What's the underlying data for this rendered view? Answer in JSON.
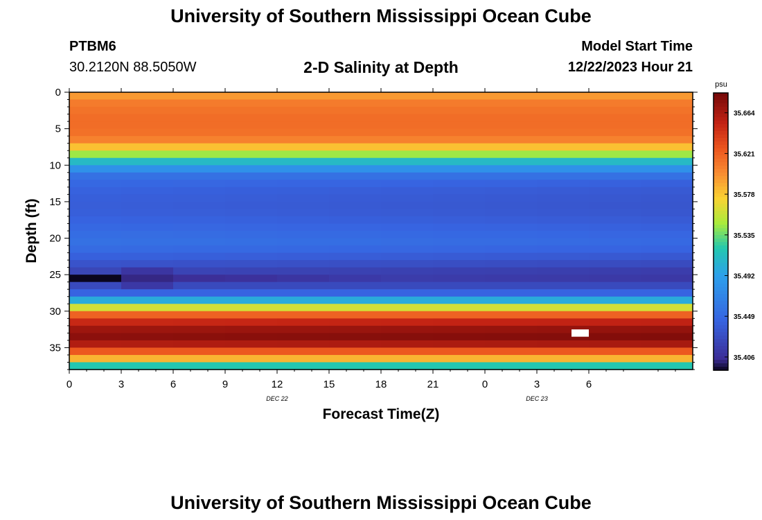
{
  "header": {
    "title": "University of Southern Mississippi Ocean Cube",
    "station_id": "PTBM6",
    "station_coords": "30.2120N  88.5050W",
    "subtitle": "2-D Salinity at Depth",
    "model_start_label": "Model Start Time",
    "model_start_value": "12/22/2023 Hour 21"
  },
  "footer": {
    "title_repeat": "University of Southern Mississippi Ocean Cube"
  },
  "chart_data": {
    "type": "heatmap",
    "title": "2-D Salinity at Depth",
    "xlabel": "Forecast Time(Z)",
    "ylabel": "Depth (ft)",
    "x_range_hours": [
      0,
      36
    ],
    "x_ticks": [
      {
        "hour": 0,
        "label": "0"
      },
      {
        "hour": 3,
        "label": "3"
      },
      {
        "hour": 6,
        "label": "6"
      },
      {
        "hour": 9,
        "label": "9"
      },
      {
        "hour": 12,
        "label": "12"
      },
      {
        "hour": 15,
        "label": "15"
      },
      {
        "hour": 18,
        "label": "18"
      },
      {
        "hour": 21,
        "label": "21"
      },
      {
        "hour": 24,
        "label": "0"
      },
      {
        "hour": 27,
        "label": "3"
      },
      {
        "hour": 30,
        "label": "6"
      }
    ],
    "date_labels": [
      {
        "hour": 12,
        "label": "DEC 22"
      },
      {
        "hour": 27,
        "label": "DEC 23"
      }
    ],
    "y_range_ft": [
      0,
      38
    ],
    "y_ticks": [
      0,
      5,
      10,
      15,
      20,
      25,
      30,
      35
    ],
    "colorbar": {
      "unit": "psu",
      "min": 35.392,
      "max": 35.685,
      "ticks": [
        "35.664",
        "35.621",
        "35.578",
        "35.535",
        "35.492",
        "35.449",
        "35.406"
      ]
    },
    "time_columns": 12,
    "depth_levels_ft": [
      0.5,
      1.5,
      2.5,
      3.5,
      4.5,
      5.5,
      6.5,
      7.5,
      8.5,
      9.5,
      10.5,
      11.5,
      12.5,
      13.5,
      14.5,
      15.5,
      16.5,
      17.5,
      18.5,
      19.5,
      20.5,
      21.5,
      22.5,
      23.5,
      24.5,
      25.5,
      26.5,
      27.5,
      28.5,
      29.5,
      30.5,
      31.5,
      32.5,
      33.5,
      34.5,
      35.5,
      36.5,
      37.5
    ],
    "salinity_profile_psu": [
      35.595,
      35.608,
      35.612,
      35.615,
      35.615,
      35.613,
      35.605,
      35.58,
      35.545,
      35.51,
      35.48,
      35.455,
      35.448,
      35.443,
      35.441,
      35.44,
      35.441,
      35.444,
      35.448,
      35.452,
      35.455,
      35.45,
      35.442,
      35.432,
      35.422,
      35.418,
      35.425,
      35.445,
      35.5,
      35.56,
      35.62,
      35.65,
      35.668,
      35.675,
      35.66,
      35.625,
      35.585,
      35.52
    ],
    "anomalies": [
      {
        "depth_ft": 25.5,
        "column": 0,
        "value_psu": 35.392
      },
      {
        "depth_ft": 25.5,
        "column": 1,
        "value_psu": 35.402
      },
      {
        "depth_ft": 24.5,
        "column": 1,
        "value_psu": 35.41
      },
      {
        "depth_ft": 26.5,
        "column": 1,
        "value_psu": 35.412
      },
      {
        "depth_ft": 25.5,
        "column": 2,
        "value_psu": 35.405
      },
      {
        "depth_ft": 25.5,
        "column": 3,
        "value_psu": 35.407
      },
      {
        "depth_ft": 25.5,
        "column": 4,
        "value_psu": 35.41
      },
      {
        "depth_ft": 25.5,
        "column": 5,
        "value_psu": 35.413
      }
    ],
    "missing_cell": {
      "depth_ft": 33.0,
      "hour_start": 29.0,
      "hour_end": 30.0
    }
  }
}
